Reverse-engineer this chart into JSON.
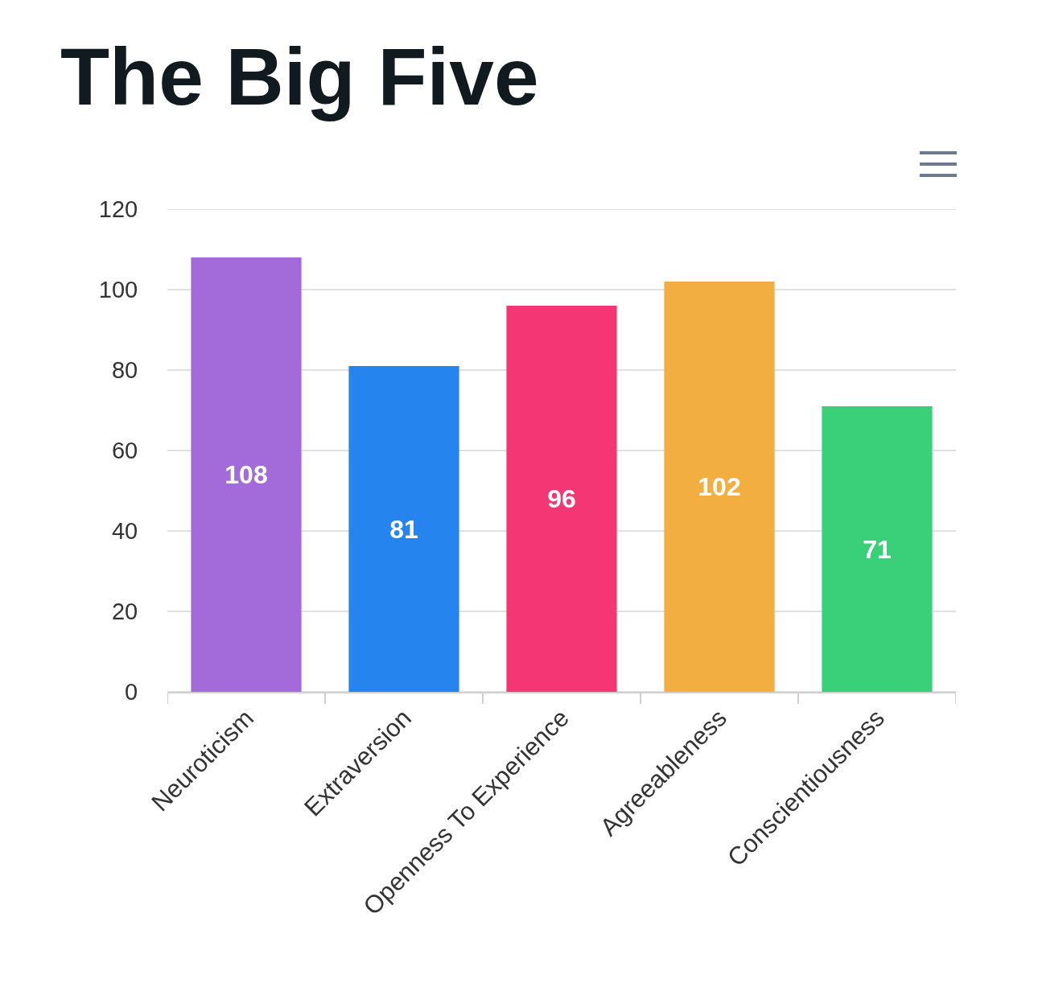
{
  "chart_data": {
    "type": "bar",
    "title": "The Big Five",
    "categories": [
      "Neuroticism",
      "Extraversion",
      "Openness To Experience",
      "Agreeableness",
      "Conscientiousness"
    ],
    "values": [
      108,
      81,
      96,
      102,
      71
    ],
    "colors": [
      "#a36bd9",
      "#2684ee",
      "#f43675",
      "#f3ae42",
      "#3ad07a"
    ],
    "ylim": [
      0,
      120
    ],
    "yticks": [
      0,
      20,
      40,
      60,
      80,
      100,
      120
    ],
    "grid": "y",
    "data_labels": true
  }
}
